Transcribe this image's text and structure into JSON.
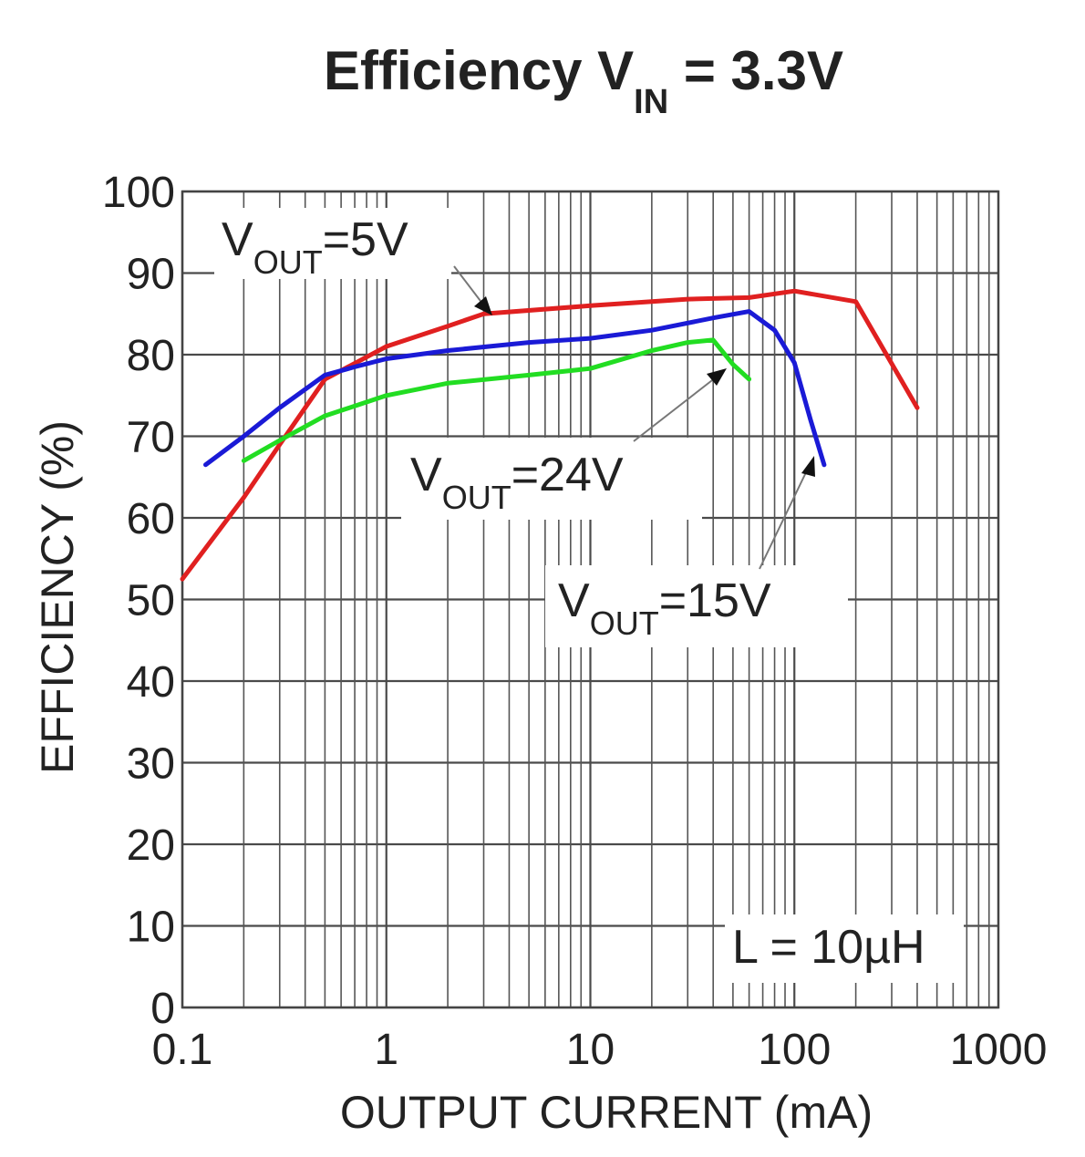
{
  "chart_data": {
    "type": "line",
    "title": "Efficiency V",
    "title_sub": "IN",
    "title_tail": " = 3.3V",
    "xlabel": "OUTPUT CURRENT (mA)",
    "ylabel": "EFFICIENCY (%)",
    "x_scale": "log",
    "xlim": [
      0.1,
      1000
    ],
    "ylim": [
      0,
      100
    ],
    "x_ticks": [
      0.1,
      1,
      10,
      100,
      1000
    ],
    "x_tick_labels": [
      "0.1",
      "1",
      "10",
      "100",
      "1000"
    ],
    "y_ticks": [
      0,
      10,
      20,
      30,
      40,
      50,
      60,
      70,
      80,
      90,
      100
    ],
    "y_tick_labels": [
      "0",
      "10",
      "20",
      "30",
      "40",
      "50",
      "60",
      "70",
      "80",
      "90",
      "100"
    ],
    "grid": true,
    "series": [
      {
        "name": "VOUT=5V",
        "color": "#e02020",
        "x": [
          0.1,
          0.2,
          0.3,
          0.5,
          1,
          2,
          3,
          10,
          30,
          60,
          100,
          200,
          400
        ],
        "y": [
          52.5,
          62.5,
          69,
          77,
          81,
          83.5,
          85,
          86,
          86.8,
          87,
          87.8,
          86.5,
          73.5
        ]
      },
      {
        "name": "VOUT=15V",
        "color": "#1a1ad6",
        "x": [
          0.13,
          0.2,
          0.3,
          0.5,
          0.7,
          1,
          2,
          5,
          10,
          20,
          40,
          60,
          80,
          100,
          120,
          140
        ],
        "y": [
          66.5,
          70,
          73.5,
          77.5,
          78.5,
          79.5,
          80.5,
          81.5,
          82,
          83,
          84.5,
          85.3,
          83,
          79,
          72,
          66.5
        ]
      },
      {
        "name": "VOUT=24V",
        "color": "#22dd22",
        "x": [
          0.2,
          0.3,
          0.5,
          1,
          2,
          5,
          10,
          20,
          30,
          40,
          50,
          60
        ],
        "y": [
          67,
          69.5,
          72.5,
          75,
          76.5,
          77.5,
          78.3,
          80.5,
          81.5,
          81.8,
          78.8,
          77
        ]
      }
    ],
    "annotations": [
      {
        "text": "V",
        "sub": "OUT",
        "tail": "=5V",
        "points_to": [
          4,
          85.5
        ]
      },
      {
        "text": "V",
        "sub": "OUT",
        "tail": "=24V",
        "points_to": [
          48,
          79.5
        ]
      },
      {
        "text": "V",
        "sub": "OUT",
        "tail": "=15V",
        "points_to": [
          130,
          66.5
        ]
      },
      {
        "text": "L = 10µH"
      }
    ]
  }
}
